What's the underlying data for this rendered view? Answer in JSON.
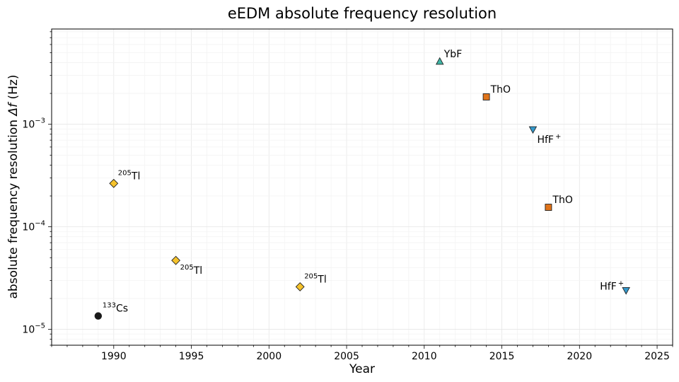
{
  "chart_data": {
    "type": "scatter",
    "title": "eEDM absolute frequency resolution",
    "xlabel": "Year",
    "ylabel_main": "absolute frequency resolution ",
    "ylabel_symbol": "Δf",
    "ylabel_unit": " (Hz)",
    "xlim": [
      1986,
      2026
    ],
    "ylim": [
      7e-06,
      0.0085
    ],
    "yscale": "log",
    "grid": true,
    "x_ticks": [
      1990,
      1995,
      2000,
      2005,
      2010,
      2015,
      2020,
      2025
    ],
    "y_ticks": [
      {
        "value": 1e-05,
        "mantissa": "10",
        "exponent": "−5"
      },
      {
        "value": 0.0001,
        "mantissa": "10",
        "exponent": "−4"
      },
      {
        "value": 0.001,
        "mantissa": "10",
        "exponent": "−3"
      }
    ],
    "points": [
      {
        "x": 1989,
        "y": 1.35e-05,
        "marker": "circle",
        "color": "#1a1a1a",
        "sup": "133",
        "label": "Cs",
        "label_pos": "above-right"
      },
      {
        "x": 1990,
        "y": 0.000265,
        "marker": "diamond",
        "color": "#f5c22b",
        "sup": "205",
        "label": "Tl",
        "label_pos": "above-right"
      },
      {
        "x": 1994,
        "y": 4.7e-05,
        "marker": "diamond",
        "color": "#f5c22b",
        "sup": "205",
        "label": "Tl",
        "label_pos": "below-right"
      },
      {
        "x": 2002,
        "y": 2.6e-05,
        "marker": "diamond",
        "color": "#f5c22b",
        "sup": "205",
        "label": "Tl",
        "label_pos": "above-right"
      },
      {
        "x": 2011,
        "y": 0.0041,
        "marker": "triangle-up",
        "color": "#3fb5a5",
        "sup": "",
        "label": "YbF",
        "label_pos": "above-right"
      },
      {
        "x": 2014,
        "y": 0.00185,
        "marker": "square",
        "color": "#e0741a",
        "sup": "",
        "label": "ThO",
        "label_pos": "above-right"
      },
      {
        "x": 2017,
        "y": 0.00089,
        "marker": "triangle-down",
        "color": "#3399cc",
        "sup": "+",
        "label": "HfF",
        "label_pos": "below-right"
      },
      {
        "x": 2018,
        "y": 0.000155,
        "marker": "square",
        "color": "#e0741a",
        "sup": "",
        "label": "ThO",
        "label_pos": "above-right"
      },
      {
        "x": 2023,
        "y": 2.4e-05,
        "marker": "triangle-down",
        "color": "#3399cc",
        "sup": "+",
        "label": "HfF",
        "label_pos": "above-left"
      }
    ]
  }
}
